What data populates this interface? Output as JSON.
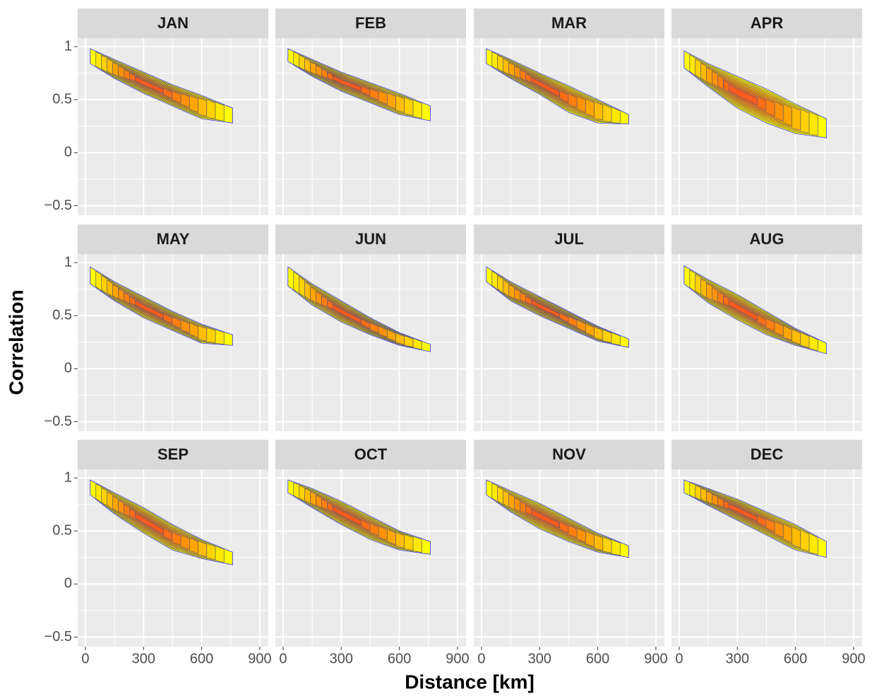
{
  "chart_data": {
    "type": "density-contour",
    "x_label": "Distance [km]",
    "y_label": "Correlation",
    "xlim": [
      -40,
      944
    ],
    "ylim": [
      -0.59,
      1.08
    ],
    "xticks": [
      0,
      300,
      600,
      900
    ],
    "yticks": [
      {
        "value": -0.5,
        "label": "−0.5"
      },
      0,
      0.5,
      1
    ],
    "grid": true,
    "minor_grid": true,
    "colors": [
      "#ffff00",
      "#ffa500",
      "#ff5a1e"
    ],
    "line_color": "#55556a",
    "outline_color": "#3333ff",
    "x": [
      25,
      150,
      300,
      450,
      600,
      760
    ],
    "panels": [
      {
        "title": "JAN",
        "upper": [
          0.98,
          0.88,
          0.76,
          0.64,
          0.54,
          0.42
        ],
        "lower": [
          0.84,
          0.7,
          0.56,
          0.44,
          0.32,
          0.28
        ]
      },
      {
        "title": "FEB",
        "upper": [
          0.98,
          0.88,
          0.76,
          0.66,
          0.56,
          0.44
        ],
        "lower": [
          0.86,
          0.72,
          0.58,
          0.47,
          0.36,
          0.3
        ]
      },
      {
        "title": "MAR",
        "upper": [
          0.98,
          0.88,
          0.75,
          0.63,
          0.5,
          0.36
        ],
        "lower": [
          0.84,
          0.7,
          0.55,
          0.38,
          0.28,
          0.27
        ]
      },
      {
        "title": "APR",
        "upper": [
          0.96,
          0.84,
          0.72,
          0.6,
          0.46,
          0.32
        ],
        "lower": [
          0.8,
          0.62,
          0.42,
          0.28,
          0.18,
          0.14
        ]
      },
      {
        "title": "MAY",
        "upper": [
          0.96,
          0.82,
          0.68,
          0.54,
          0.42,
          0.32
        ],
        "lower": [
          0.8,
          0.64,
          0.48,
          0.36,
          0.24,
          0.22
        ]
      },
      {
        "title": "JUN",
        "upper": [
          0.96,
          0.8,
          0.64,
          0.48,
          0.34,
          0.23
        ],
        "lower": [
          0.78,
          0.6,
          0.44,
          0.32,
          0.22,
          0.16
        ]
      },
      {
        "title": "JUL",
        "upper": [
          0.96,
          0.82,
          0.68,
          0.54,
          0.4,
          0.28
        ],
        "lower": [
          0.82,
          0.64,
          0.5,
          0.38,
          0.26,
          0.2
        ]
      },
      {
        "title": "AUG",
        "upper": [
          0.97,
          0.84,
          0.7,
          0.54,
          0.38,
          0.24
        ],
        "lower": [
          0.8,
          0.62,
          0.46,
          0.32,
          0.22,
          0.14
        ]
      },
      {
        "title": "SEP",
        "upper": [
          0.98,
          0.86,
          0.72,
          0.56,
          0.42,
          0.3
        ],
        "lower": [
          0.84,
          0.66,
          0.48,
          0.32,
          0.24,
          0.18
        ]
      },
      {
        "title": "OCT",
        "upper": [
          0.98,
          0.9,
          0.78,
          0.64,
          0.5,
          0.4
        ],
        "lower": [
          0.86,
          0.72,
          0.56,
          0.42,
          0.32,
          0.28
        ]
      },
      {
        "title": "NOV",
        "upper": [
          0.98,
          0.88,
          0.76,
          0.62,
          0.48,
          0.36
        ],
        "lower": [
          0.84,
          0.68,
          0.52,
          0.4,
          0.3,
          0.25
        ]
      },
      {
        "title": "DEC",
        "upper": [
          0.98,
          0.9,
          0.8,
          0.68,
          0.56,
          0.4
        ],
        "lower": [
          0.86,
          0.74,
          0.6,
          0.46,
          0.32,
          0.25
        ]
      }
    ]
  }
}
